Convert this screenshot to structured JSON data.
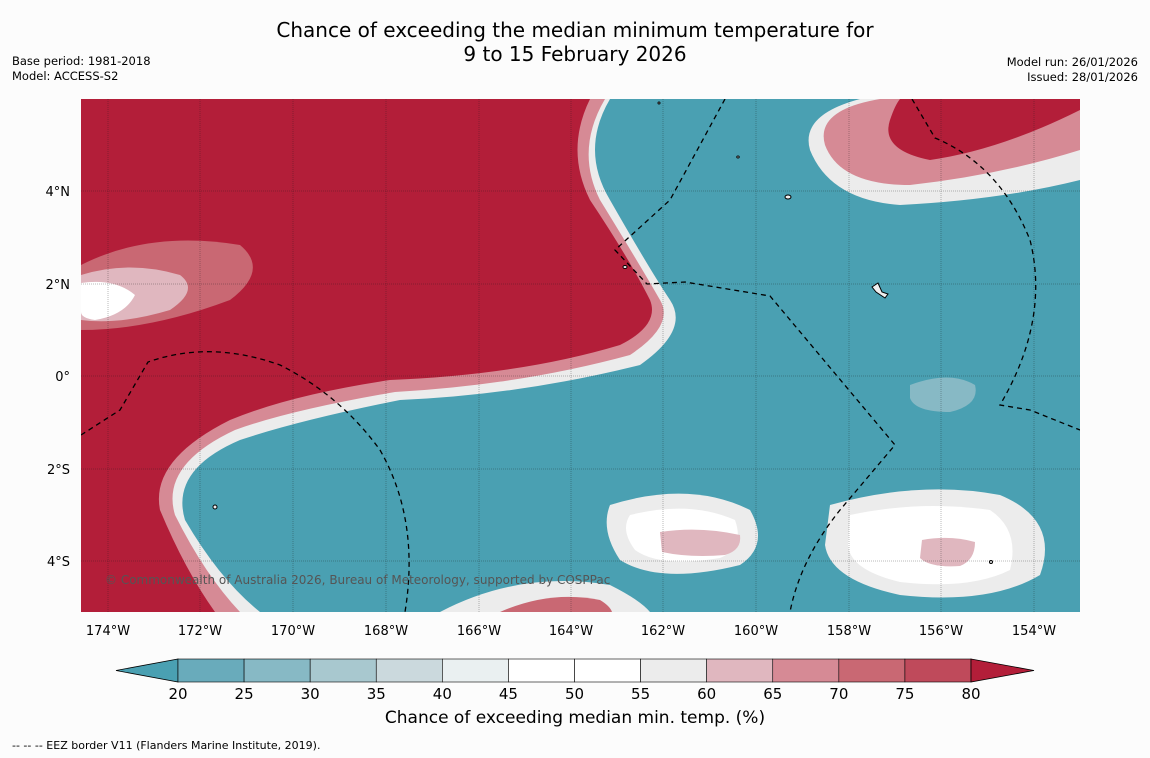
{
  "header": {
    "title_line1": "Chance of exceeding the median minimum temperature for",
    "title_line2": "9 to 15 February 2026",
    "base_period": "Base period: 1981-2018",
    "model": "Model: ACCESS-S2",
    "model_run": "Model run: 26/01/2026",
    "issued": "Issued: 28/01/2026"
  },
  "map": {
    "x_ticks": [
      "174°W",
      "172°W",
      "170°W",
      "168°W",
      "166°W",
      "164°W",
      "162°W",
      "160°W",
      "158°W",
      "156°W",
      "154°W"
    ],
    "y_ticks": [
      "4°N",
      "2°N",
      "0°",
      "2°S",
      "4°S"
    ],
    "copyright": "© Commonwealth of Australia 2026, Bureau of Meteorology, supported by COSPPac",
    "colors": {
      "ocean_below": "#4aa0b2",
      "above": "#b31e39",
      "neutral": "#ffffff"
    }
  },
  "colorbar": {
    "ticks": [
      "20",
      "25",
      "30",
      "35",
      "40",
      "45",
      "50",
      "55",
      "60",
      "65",
      "70",
      "75",
      "80"
    ],
    "colors": [
      "#4aa0b2",
      "#69abbb",
      "#87b9c5",
      "#a8c8cf",
      "#cbd9dd",
      "#eaf0f1",
      "#ffffff",
      "#ffffff",
      "#ececec",
      "#e0b7bf",
      "#d68a95",
      "#c96873",
      "#bf4a5b",
      "#b31e39"
    ],
    "title": "Chance of exceeding median min. temp. (%)"
  },
  "footer": {
    "eez_legend": "--  --  -- EEZ border V11 (Flanders Marine Institute, 2019)."
  }
}
